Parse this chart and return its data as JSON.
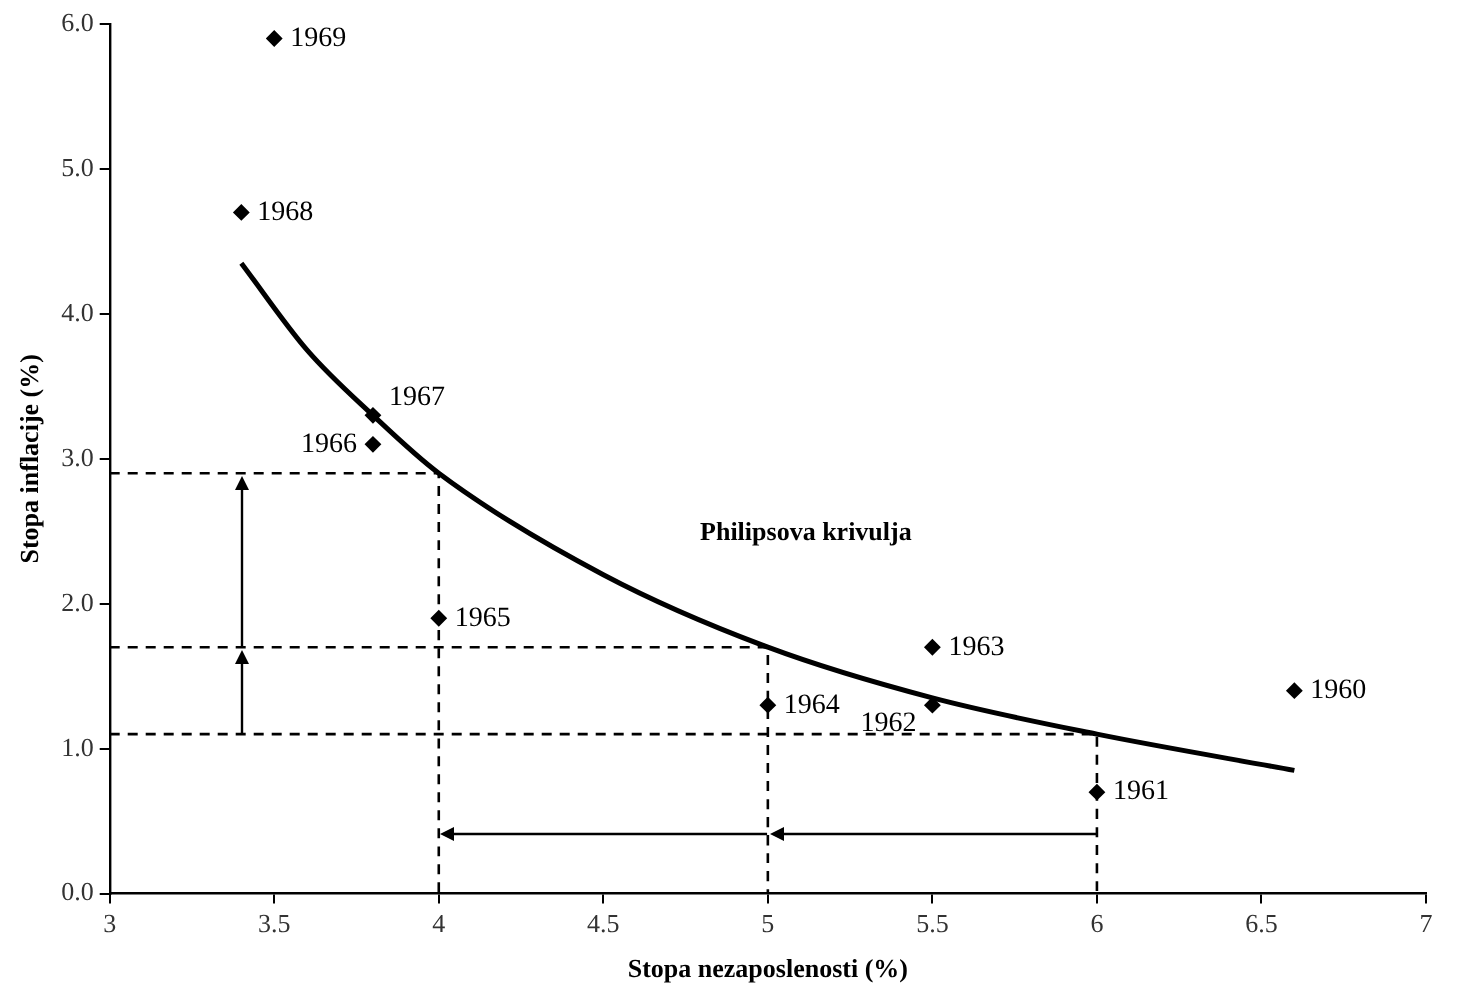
{
  "chart_data": {
    "type": "scatter",
    "xlabel": "Stopa nezaposlenosti (%)",
    "ylabel": "Stopa inflacije (%)",
    "xlim": [
      3,
      7
    ],
    "ylim": [
      0,
      6
    ],
    "xticks": [
      3,
      3.5,
      4,
      4.5,
      5,
      5.5,
      6,
      6.5,
      7
    ],
    "yticks": [
      {
        "value": 0,
        "label": "0.0"
      },
      {
        "value": 1,
        "label": "1.0"
      },
      {
        "value": 2,
        "label": "2.0"
      },
      {
        "value": 3,
        "label": "3.0"
      },
      {
        "value": 4,
        "label": "4.0"
      },
      {
        "value": 5,
        "label": "5.0"
      },
      {
        "value": 6,
        "label": "6.0"
      }
    ],
    "grid": false,
    "legend": false,
    "series": [
      {
        "color": "#000000",
        "marker": "diamond",
        "x": [
          6.6,
          6.0,
          5.5,
          5.5,
          5.0,
          4.0,
          3.8,
          3.8,
          3.4,
          3.5
        ],
        "values": [
          1.4,
          0.7,
          1.3,
          1.7,
          1.3,
          1.9,
          3.1,
          3.3,
          4.7,
          5.9
        ]
      },
      {
        "type": "line",
        "name": "Philipsova krivulja",
        "color": "#000000",
        "marker": "none",
        "line_style": "solid",
        "x": [
          3.4,
          3.6,
          3.8,
          4.0,
          4.5,
          5.0,
          5.5,
          6.0,
          6.6
        ],
        "values": [
          4.35,
          3.75,
          3.3,
          2.9,
          2.2,
          1.7,
          1.35,
          1.1,
          0.85
        ]
      },
      {
        "type": "line",
        "color": "#000000",
        "marker": "none",
        "line_style": "dashed",
        "x": [
          3,
          4,
          4
        ],
        "values": [
          2.9,
          2.9,
          0
        ]
      },
      {
        "type": "line",
        "color": "#000000",
        "marker": "none",
        "line_style": "dashed",
        "x": [
          3,
          5,
          5
        ],
        "values": [
          1.7,
          1.7,
          0
        ]
      },
      {
        "type": "line",
        "color": "#000000",
        "marker": "none",
        "line_style": "dashed",
        "x": [
          3,
          6,
          6
        ],
        "values": [
          1.1,
          1.1,
          0
        ]
      }
    ],
    "annotations": [
      {
        "text": "1960",
        "x": 6.6,
        "y": 1.4
      },
      {
        "text": "1961",
        "x": 6.0,
        "y": 0.7
      },
      {
        "text": "1962",
        "x": 5.5,
        "y": 1.3
      },
      {
        "text": "1963",
        "x": 5.5,
        "y": 1.7
      },
      {
        "text": "1964",
        "x": 5.0,
        "y": 1.3
      },
      {
        "text": "1965",
        "x": 4.0,
        "y": 1.9
      },
      {
        "text": "1966",
        "x": 3.8,
        "y": 3.1
      },
      {
        "text": "1967",
        "x": 3.8,
        "y": 3.3
      },
      {
        "text": "1968",
        "x": 3.4,
        "y": 4.7
      },
      {
        "text": "1969",
        "x": 3.5,
        "y": 5.9
      }
    ]
  }
}
